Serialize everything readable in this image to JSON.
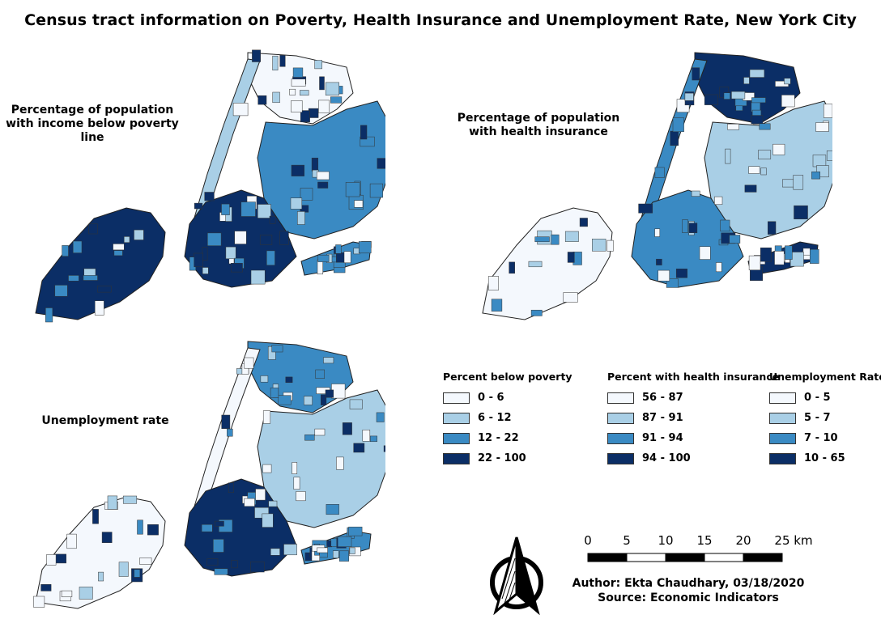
{
  "title": "Census tract information on Poverty, Health Insurance and Unemployment Rate, New York City",
  "maps": {
    "poverty": {
      "label": "Percentage of population with income below poverty line"
    },
    "health": {
      "label": "Percentage of population with health insurance"
    },
    "unemployment": {
      "label": "Unemployment rate"
    }
  },
  "legends": [
    {
      "title": "Percent below poverty",
      "items": [
        {
          "label": "0 - 6",
          "color": "#f4f8fd"
        },
        {
          "label": "6 - 12",
          "color": "#a9cfe6"
        },
        {
          "label": "12 - 22",
          "color": "#3a8ac3"
        },
        {
          "label": "22 - 100",
          "color": "#0b2e66"
        }
      ]
    },
    {
      "title": "Percent with health insurance",
      "items": [
        {
          "label": "56 - 87",
          "color": "#f4f8fd"
        },
        {
          "label": "87 - 91",
          "color": "#a9cfe6"
        },
        {
          "label": "91 - 94",
          "color": "#3a8ac3"
        },
        {
          "label": "94 - 100",
          "color": "#0b2e66"
        }
      ]
    },
    {
      "title": "Unemployment Rate",
      "items": [
        {
          "label": "0 - 5",
          "color": "#f4f8fd"
        },
        {
          "label": "5 - 7",
          "color": "#a9cfe6"
        },
        {
          "label": "7 - 10",
          "color": "#3a8ac3"
        },
        {
          "label": "10 - 65",
          "color": "#0b2e66"
        }
      ]
    }
  ],
  "scale": {
    "ticks": [
      "0",
      "5",
      "10",
      "15",
      "20",
      "25 km"
    ]
  },
  "credits": {
    "author": "Author: Ekta Chaudhary, 03/18/2020",
    "source": "Source: Economic Indicators"
  },
  "icons": {
    "north_arrow": "north-arrow-icon"
  }
}
